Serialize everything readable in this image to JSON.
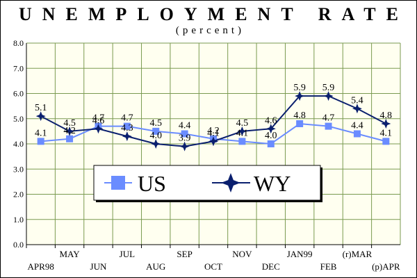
{
  "chart_data": {
    "type": "line",
    "title": "UNEMPLOYMENT RATE",
    "subtitle": "(percent)",
    "xlabel": "",
    "ylabel": "",
    "ylim": [
      0,
      8
    ],
    "yticks": [
      "0.0",
      "1.0",
      "2.0",
      "3.0",
      "4.0",
      "5.0",
      "6.0",
      "7.0",
      "8.0"
    ],
    "categories": [
      "APR98",
      "MAY",
      "JUN",
      "JUL",
      "AUG",
      "SEP",
      "OCT",
      "NOV",
      "DEC",
      "JAN99",
      "FEB",
      "(r)MAR",
      "(p)APR"
    ],
    "series": [
      {
        "name": "US",
        "color": "#6a8cff",
        "marker": "square",
        "values": [
          4.1,
          4.2,
          4.7,
          4.7,
          4.5,
          4.4,
          4.2,
          4.1,
          4.0,
          4.8,
          4.7,
          4.4,
          4.1
        ]
      },
      {
        "name": "WY",
        "color": "#0a1f6e",
        "marker": "star",
        "values": [
          5.1,
          4.5,
          4.6,
          4.3,
          4.0,
          3.9,
          4.1,
          4.5,
          4.6,
          5.9,
          5.9,
          5.4,
          4.8
        ]
      }
    ],
    "data_labels": {
      "US": [
        "4.1",
        "4.2",
        "4.7",
        "4.7",
        "4.5",
        "4.4",
        "4.2",
        "4.1",
        "4.0",
        "4.8",
        "4.7",
        "4.4",
        "4.1"
      ],
      "WY": [
        "5.1",
        "4.5",
        "4.6",
        "4.3",
        "4.0",
        "3.9",
        "4.1",
        "4.5",
        "4.6",
        "5.9",
        "5.9",
        "5.4",
        "4.8"
      ]
    },
    "grid": true,
    "legend": "bottom-center",
    "background": "#fffff0",
    "grid_color": "#7a9a50"
  }
}
